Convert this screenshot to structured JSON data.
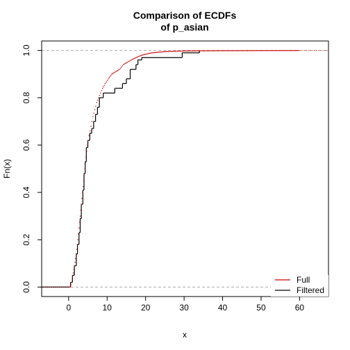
{
  "chart_data": {
    "type": "line",
    "title_lines": [
      "Comparison of ECDFs",
      "of p_asian"
    ],
    "xlabel": "x",
    "ylabel": "Fn(x)",
    "xlim": [
      -7,
      67.5
    ],
    "ylim": [
      -0.04,
      1.04
    ],
    "x_ticks": [
      0,
      10,
      20,
      30,
      40,
      50,
      60
    ],
    "x_tick_labels": [
      "0",
      "10",
      "20",
      "30",
      "40",
      "50",
      "60"
    ],
    "y_ticks": [
      0.0,
      0.2,
      0.4,
      0.6,
      0.8,
      1.0
    ],
    "y_tick_labels": [
      "0.0",
      "0.2",
      "0.4",
      "0.6",
      "0.8",
      "1.0"
    ],
    "reference_lines": [
      0,
      1
    ],
    "legend_position": "bottom-right",
    "series": [
      {
        "name": "Full",
        "color": "#cc0000",
        "style": "points",
        "points": [
          [
            0.3,
            0.0
          ],
          [
            0.6,
            0.01
          ],
          [
            0.9,
            0.03
          ],
          [
            1.2,
            0.06
          ],
          [
            1.5,
            0.09
          ],
          [
            1.8,
            0.12
          ],
          [
            2.1,
            0.16
          ],
          [
            2.4,
            0.2
          ],
          [
            2.7,
            0.25
          ],
          [
            3.0,
            0.3
          ],
          [
            3.3,
            0.35
          ],
          [
            3.6,
            0.4
          ],
          [
            3.9,
            0.45
          ],
          [
            4.2,
            0.5
          ],
          [
            4.5,
            0.55
          ],
          [
            4.9,
            0.6
          ],
          [
            5.3,
            0.64
          ],
          [
            5.8,
            0.68
          ],
          [
            6.3,
            0.72
          ],
          [
            6.8,
            0.75
          ],
          [
            7.3,
            0.78
          ],
          [
            7.8,
            0.8
          ],
          [
            8.3,
            0.82
          ],
          [
            8.8,
            0.84
          ],
          [
            9.5,
            0.86
          ],
          [
            10.3,
            0.88
          ],
          [
            11.2,
            0.9
          ],
          [
            12.2,
            0.91
          ],
          [
            13.2,
            0.92
          ],
          [
            14.2,
            0.94
          ],
          [
            15.2,
            0.95
          ],
          [
            16.3,
            0.96
          ],
          [
            17.5,
            0.97
          ],
          [
            19.0,
            0.98
          ],
          [
            21.5,
            0.99
          ],
          [
            25.0,
            0.995
          ],
          [
            30.0,
            0.998
          ],
          [
            40.0,
            0.999
          ],
          [
            50.0,
            0.9995
          ],
          [
            60.0,
            1.0
          ]
        ]
      },
      {
        "name": "Filtered",
        "color": "#000000",
        "style": "step",
        "steps": [
          [
            0.0,
            0.0
          ],
          [
            0.5,
            0.02
          ],
          [
            1.0,
            0.05
          ],
          [
            1.5,
            0.09
          ],
          [
            2.0,
            0.14
          ],
          [
            2.3,
            0.18
          ],
          [
            2.7,
            0.23
          ],
          [
            3.0,
            0.29
          ],
          [
            3.3,
            0.35
          ],
          [
            3.7,
            0.41
          ],
          [
            4.0,
            0.48
          ],
          [
            4.3,
            0.53
          ],
          [
            4.6,
            0.59
          ],
          [
            5.0,
            0.62
          ],
          [
            5.5,
            0.65
          ],
          [
            6.0,
            0.67
          ],
          [
            6.5,
            0.7
          ],
          [
            7.0,
            0.73
          ],
          [
            7.5,
            0.76
          ],
          [
            8.0,
            0.8
          ],
          [
            9.0,
            0.82
          ],
          [
            12.0,
            0.84
          ],
          [
            14.0,
            0.86
          ],
          [
            15.0,
            0.88
          ],
          [
            16.0,
            0.92
          ],
          [
            17.5,
            0.94
          ],
          [
            18.0,
            0.96
          ],
          [
            19.0,
            0.97
          ],
          [
            29.5,
            0.99
          ],
          [
            34.0,
            1.0
          ]
        ],
        "x_end": 34.0
      }
    ]
  }
}
